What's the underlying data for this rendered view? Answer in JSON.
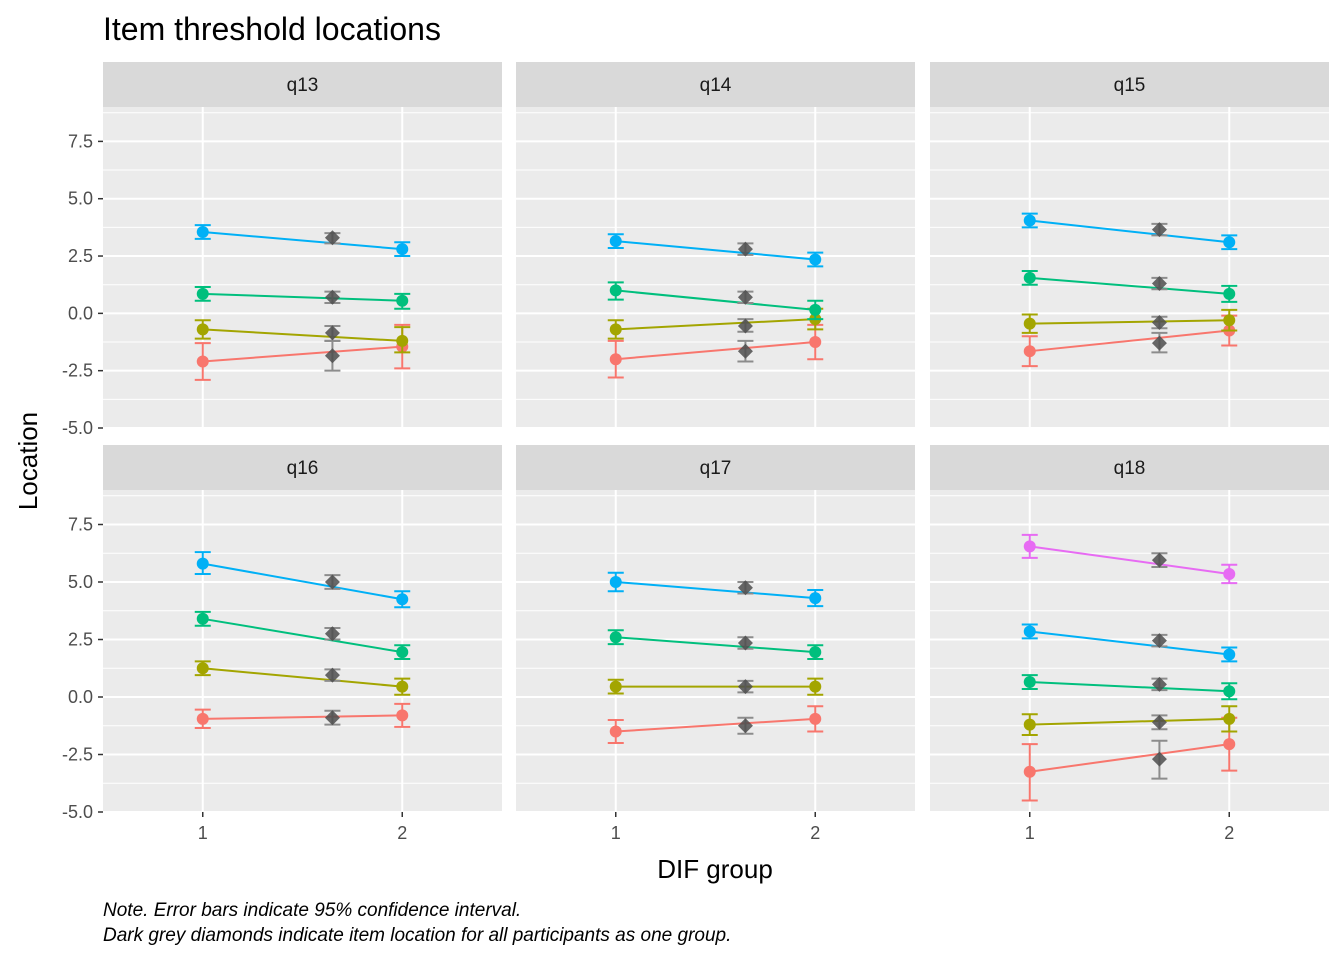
{
  "chart_data": {
    "type": "line",
    "title": "Item threshold locations",
    "xlabel": "DIF group",
    "ylabel": "Location",
    "xlim": [
      0.5,
      2.5
    ],
    "ylim": [
      -5.0,
      9.0
    ],
    "x_ticks": [
      "1",
      "2"
    ],
    "y_ticks": [
      "-5.0",
      "-2.5",
      "0.0",
      "2.5",
      "5.0",
      "7.5"
    ],
    "grid": true,
    "legend": "none",
    "caption_lines": [
      "Note. Error bars indicate 95% confidence interval.",
      "Dark grey diamonds indicate item location for all participants as one group."
    ],
    "colors": {
      "threshold_1": "#F8766D",
      "threshold_2": "#A3A500",
      "threshold_3": "#00BF7D",
      "threshold_4": "#00B0F6",
      "threshold_5": "#E76BF3",
      "overall_marker": "#4d4d4d",
      "overall_errorbar": "#8c8c8c",
      "panel_background": "#ebebeb",
      "strip_background": "#d9d9d9",
      "gridline": "#ffffff"
    },
    "panels": [
      {
        "label": "q13",
        "thresholds": [
          {
            "group1": -2.1,
            "group1_ci": [
              -2.9,
              -1.3
            ],
            "group2": -1.45,
            "group2_ci": [
              -2.4,
              -0.5
            ],
            "overall": -1.85,
            "overall_ci": [
              -2.5,
              -1.2
            ]
          },
          {
            "group1": -0.7,
            "group1_ci": [
              -1.1,
              -0.3
            ],
            "group2": -1.2,
            "group2_ci": [
              -1.7,
              -0.6
            ],
            "overall": -0.85,
            "overall_ci": [
              -1.2,
              -0.55
            ]
          },
          {
            "group1": 0.85,
            "group1_ci": [
              0.55,
              1.15
            ],
            "group2": 0.55,
            "group2_ci": [
              0.2,
              0.85
            ],
            "overall": 0.7,
            "overall_ci": [
              0.45,
              0.95
            ]
          },
          {
            "group1": 3.55,
            "group1_ci": [
              3.25,
              3.85
            ],
            "group2": 2.8,
            "group2_ci": [
              2.5,
              3.1
            ],
            "overall": 3.3,
            "overall_ci": [
              3.05,
              3.5
            ]
          }
        ]
      },
      {
        "label": "q14",
        "thresholds": [
          {
            "group1": -2.0,
            "group1_ci": [
              -2.8,
              -1.2
            ],
            "group2": -1.25,
            "group2_ci": [
              -2.0,
              -0.5
            ],
            "overall": -1.65,
            "overall_ci": [
              -2.1,
              -1.2
            ]
          },
          {
            "group1": -0.7,
            "group1_ci": [
              -1.1,
              -0.3
            ],
            "group2": -0.25,
            "group2_ci": [
              -0.7,
              0.2
            ],
            "overall": -0.55,
            "overall_ci": [
              -0.8,
              -0.25
            ]
          },
          {
            "group1": 1.0,
            "group1_ci": [
              0.6,
              1.35
            ],
            "group2": 0.15,
            "group2_ci": [
              -0.25,
              0.55
            ],
            "overall": 0.7,
            "overall_ci": [
              0.45,
              0.95
            ]
          },
          {
            "group1": 3.15,
            "group1_ci": [
              2.85,
              3.45
            ],
            "group2": 2.35,
            "group2_ci": [
              2.05,
              2.65
            ],
            "overall": 2.8,
            "overall_ci": [
              2.55,
              3.05
            ]
          }
        ]
      },
      {
        "label": "q15",
        "thresholds": [
          {
            "group1": -1.65,
            "group1_ci": [
              -2.3,
              -1.0
            ],
            "group2": -0.75,
            "group2_ci": [
              -1.4,
              -0.1
            ],
            "overall": -1.3,
            "overall_ci": [
              -1.7,
              -0.85
            ]
          },
          {
            "group1": -0.45,
            "group1_ci": [
              -0.85,
              -0.05
            ],
            "group2": -0.3,
            "group2_ci": [
              -0.75,
              0.15
            ],
            "overall": -0.4,
            "overall_ci": [
              -0.65,
              -0.15
            ]
          },
          {
            "group1": 1.55,
            "group1_ci": [
              1.25,
              1.85
            ],
            "group2": 0.85,
            "group2_ci": [
              0.5,
              1.2
            ],
            "overall": 1.3,
            "overall_ci": [
              1.05,
              1.55
            ]
          },
          {
            "group1": 4.05,
            "group1_ci": [
              3.75,
              4.35
            ],
            "group2": 3.1,
            "group2_ci": [
              2.8,
              3.4
            ],
            "overall": 3.65,
            "overall_ci": [
              3.4,
              3.9
            ]
          }
        ]
      },
      {
        "label": "q16",
        "thresholds": [
          {
            "group1": -0.95,
            "group1_ci": [
              -1.35,
              -0.55
            ],
            "group2": -0.8,
            "group2_ci": [
              -1.3,
              -0.3
            ],
            "overall": -0.9,
            "overall_ci": [
              -1.2,
              -0.6
            ]
          },
          {
            "group1": 1.25,
            "group1_ci": [
              0.95,
              1.55
            ],
            "group2": 0.45,
            "group2_ci": [
              0.1,
              0.8
            ],
            "overall": 0.95,
            "overall_ci": [
              0.7,
              1.2
            ]
          },
          {
            "group1": 3.4,
            "group1_ci": [
              3.1,
              3.7
            ],
            "group2": 1.95,
            "group2_ci": [
              1.65,
              2.25
            ],
            "overall": 2.75,
            "overall_ci": [
              2.5,
              3.0
            ]
          },
          {
            "group1": 5.8,
            "group1_ci": [
              5.35,
              6.3
            ],
            "group2": 4.25,
            "group2_ci": [
              3.9,
              4.6
            ],
            "overall": 5.0,
            "overall_ci": [
              4.7,
              5.3
            ]
          }
        ]
      },
      {
        "label": "q17",
        "thresholds": [
          {
            "group1": -1.5,
            "group1_ci": [
              -2.0,
              -1.0
            ],
            "group2": -0.95,
            "group2_ci": [
              -1.5,
              -0.4
            ],
            "overall": -1.25,
            "overall_ci": [
              -1.6,
              -0.9
            ]
          },
          {
            "group1": 0.45,
            "group1_ci": [
              0.15,
              0.75
            ],
            "group2": 0.45,
            "group2_ci": [
              0.1,
              0.8
            ],
            "overall": 0.45,
            "overall_ci": [
              0.2,
              0.7
            ]
          },
          {
            "group1": 2.6,
            "group1_ci": [
              2.3,
              2.9
            ],
            "group2": 1.95,
            "group2_ci": [
              1.65,
              2.25
            ],
            "overall": 2.35,
            "overall_ci": [
              2.1,
              2.6
            ]
          },
          {
            "group1": 5.0,
            "group1_ci": [
              4.6,
              5.4
            ],
            "group2": 4.3,
            "group2_ci": [
              3.95,
              4.65
            ],
            "overall": 4.75,
            "overall_ci": [
              4.5,
              5.0
            ]
          }
        ]
      },
      {
        "label": "q18",
        "thresholds": [
          {
            "group1": -3.25,
            "group1_ci": [
              -4.5,
              -2.05
            ],
            "group2": -2.05,
            "group2_ci": [
              -3.2,
              -0.9
            ],
            "overall": -2.7,
            "overall_ci": [
              -3.55,
              -1.9
            ]
          },
          {
            "group1": -1.2,
            "group1_ci": [
              -1.65,
              -0.75
            ],
            "group2": -0.95,
            "group2_ci": [
              -1.5,
              -0.4
            ],
            "overall": -1.1,
            "overall_ci": [
              -1.4,
              -0.8
            ]
          },
          {
            "group1": 0.65,
            "group1_ci": [
              0.35,
              0.95
            ],
            "group2": 0.25,
            "group2_ci": [
              -0.1,
              0.6
            ],
            "overall": 0.55,
            "overall_ci": [
              0.3,
              0.8
            ]
          },
          {
            "group1": 2.85,
            "group1_ci": [
              2.55,
              3.15
            ],
            "group2": 1.85,
            "group2_ci": [
              1.55,
              2.15
            ],
            "overall": 2.45,
            "overall_ci": [
              2.2,
              2.7
            ]
          },
          {
            "group1": 6.55,
            "group1_ci": [
              6.05,
              7.05
            ],
            "group2": 5.35,
            "group2_ci": [
              4.95,
              5.75
            ],
            "overall": 5.95,
            "overall_ci": [
              5.65,
              6.25
            ]
          }
        ]
      }
    ]
  }
}
